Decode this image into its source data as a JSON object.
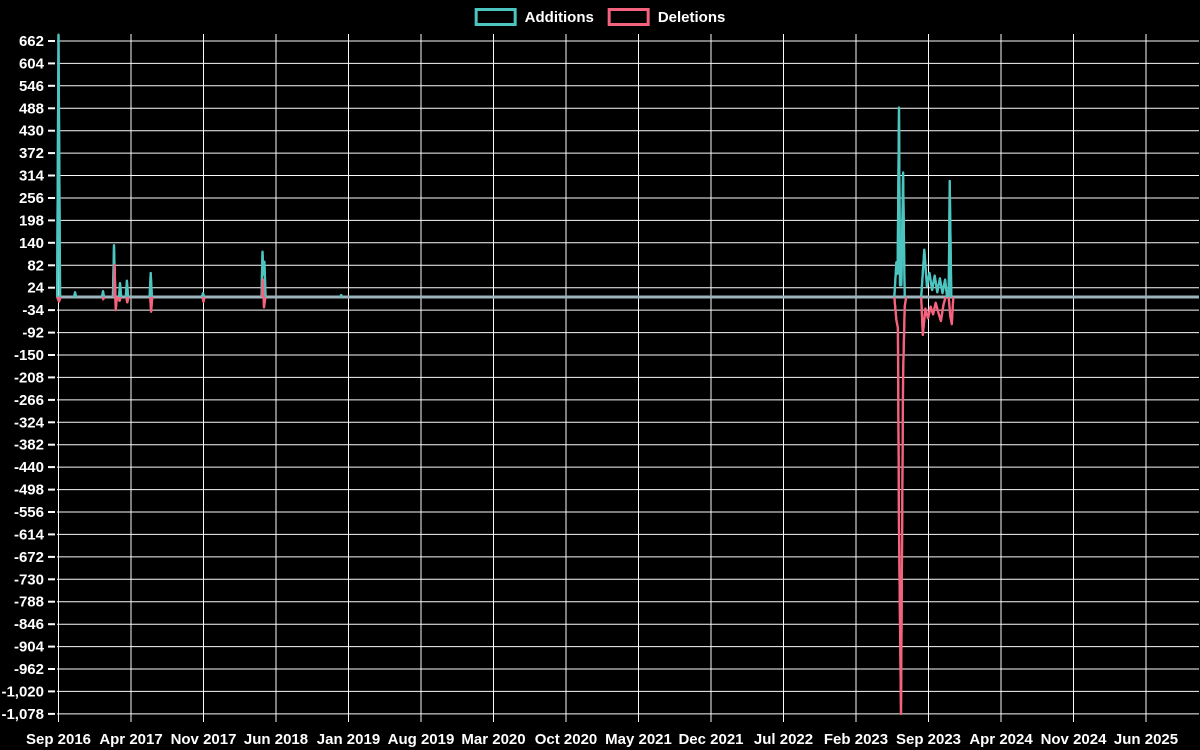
{
  "page": {
    "background": "#000000"
  },
  "legend": {
    "items": [
      {
        "label": "Additions",
        "color": "#4cc4c0"
      },
      {
        "label": "Deletions",
        "color": "#f4627d"
      }
    ]
  },
  "chart_data": {
    "type": "line",
    "title": "",
    "legend_position": "top-center",
    "grid": true,
    "colors": {
      "additions": "#4cc4c0",
      "deletions": "#f4627d",
      "baseline": "#9db4bc",
      "grid": "#fafafa",
      "text": "#ffffff",
      "background": "#000000"
    },
    "x_axis": {
      "unit": "months since Sep 2016",
      "tick_labels": [
        "Sep 2016",
        "Apr 2017",
        "Nov 2017",
        "Jun 2018",
        "Jan 2019",
        "Aug 2019",
        "Mar 2020",
        "Oct 2020",
        "May 2021",
        "Dec 2021",
        "Jul 2022",
        "Feb 2023",
        "Sep 2023",
        "Apr 2024",
        "Nov 2024",
        "Jun 2025"
      ],
      "tick_months": [
        0,
        7,
        14,
        21,
        28,
        35,
        42,
        49,
        56,
        63,
        70,
        77,
        84,
        91,
        98,
        105
      ],
      "range_months": [
        -0.14,
        110.1
      ]
    },
    "y_axis": {
      "tick_values": [
        662,
        604,
        546,
        488,
        430,
        372,
        314,
        256,
        198,
        140,
        82,
        24,
        -34,
        -92,
        -150,
        -208,
        -266,
        -324,
        -382,
        -440,
        -498,
        -556,
        -614,
        -672,
        -730,
        -788,
        -846,
        -904,
        -962,
        -1020,
        -1078
      ],
      "tick_labels": [
        "662",
        "604",
        "546",
        "488",
        "430",
        "372",
        "314",
        "256",
        "198",
        "140",
        "82",
        "24",
        "-34",
        "-92",
        "-150",
        "-208",
        "-266",
        "-324",
        "-382",
        "-440",
        "-498",
        "-556",
        "-614",
        "-672",
        "-730",
        "-788",
        "-846",
        "-904",
        "-962",
        "-1,020",
        "-1,078"
      ],
      "range": [
        -1099,
        680
      ]
    },
    "baseline_value": 0,
    "series": [
      {
        "name": "Additions",
        "color": "#4cc4c0",
        "points": [
          [
            -0.14,
            0
          ],
          [
            0,
            678
          ],
          [
            0.15,
            0
          ],
          [
            1.5,
            0
          ],
          [
            1.6,
            12
          ],
          [
            1.7,
            0
          ],
          [
            4.2,
            0
          ],
          [
            4.3,
            15
          ],
          [
            4.4,
            0
          ],
          [
            5.25,
            0
          ],
          [
            5.36,
            134
          ],
          [
            5.48,
            0
          ],
          [
            5.85,
            0
          ],
          [
            5.94,
            36
          ],
          [
            6.05,
            0
          ],
          [
            6.5,
            0
          ],
          [
            6.6,
            42
          ],
          [
            6.72,
            0
          ],
          [
            8.8,
            0
          ],
          [
            8.9,
            62
          ],
          [
            9.02,
            0
          ],
          [
            13.85,
            0
          ],
          [
            13.95,
            10
          ],
          [
            14.07,
            0
          ],
          [
            19.6,
            0
          ],
          [
            19.7,
            117
          ],
          [
            19.78,
            58
          ],
          [
            19.88,
            91
          ],
          [
            20.0,
            0
          ],
          [
            27.2,
            0
          ],
          [
            27.3,
            5
          ],
          [
            27.4,
            0
          ],
          [
            80.7,
            0
          ],
          [
            80.9,
            90
          ],
          [
            81.02,
            60
          ],
          [
            81.15,
            490
          ],
          [
            81.25,
            30
          ],
          [
            81.38,
            30
          ],
          [
            81.55,
            322
          ],
          [
            81.7,
            0
          ],
          [
            83.3,
            0
          ],
          [
            83.6,
            122
          ],
          [
            83.85,
            28
          ],
          [
            84.1,
            62
          ],
          [
            84.35,
            18
          ],
          [
            84.6,
            55
          ],
          [
            84.85,
            12
          ],
          [
            85.1,
            48
          ],
          [
            85.35,
            10
          ],
          [
            85.6,
            45
          ],
          [
            85.8,
            0
          ],
          [
            85.95,
            0
          ],
          [
            86.05,
            300
          ],
          [
            86.2,
            0
          ],
          [
            110.1,
            0
          ]
        ]
      },
      {
        "name": "Deletions",
        "color": "#f4627d",
        "points": [
          [
            -0.14,
            0
          ],
          [
            0.05,
            -12
          ],
          [
            0.2,
            0
          ],
          [
            4.25,
            0
          ],
          [
            4.32,
            -6
          ],
          [
            4.42,
            0
          ],
          [
            5.38,
            0
          ],
          [
            5.42,
            83
          ],
          [
            5.52,
            -34
          ],
          [
            5.64,
            0
          ],
          [
            5.9,
            -10
          ],
          [
            6.0,
            0
          ],
          [
            6.55,
            0
          ],
          [
            6.64,
            -14
          ],
          [
            6.76,
            0
          ],
          [
            8.85,
            0
          ],
          [
            8.94,
            -38
          ],
          [
            9.06,
            0
          ],
          [
            13.9,
            0
          ],
          [
            14.0,
            -12
          ],
          [
            14.1,
            0
          ],
          [
            19.65,
            0
          ],
          [
            19.74,
            45
          ],
          [
            19.84,
            -27
          ],
          [
            19.98,
            0
          ],
          [
            80.7,
            0
          ],
          [
            80.9,
            -60
          ],
          [
            81.05,
            -80
          ],
          [
            81.15,
            -600
          ],
          [
            81.35,
            -1078
          ],
          [
            81.55,
            -200
          ],
          [
            81.7,
            -25
          ],
          [
            81.85,
            0
          ],
          [
            83.3,
            0
          ],
          [
            83.45,
            -98
          ],
          [
            83.7,
            -30
          ],
          [
            83.95,
            -55
          ],
          [
            84.2,
            -25
          ],
          [
            84.45,
            -45
          ],
          [
            84.7,
            -15
          ],
          [
            84.95,
            -40
          ],
          [
            85.2,
            -62
          ],
          [
            85.45,
            -20
          ],
          [
            85.65,
            0
          ],
          [
            85.95,
            0
          ],
          [
            86.1,
            -48
          ],
          [
            86.25,
            -70
          ],
          [
            86.4,
            0
          ],
          [
            110.1,
            0
          ]
        ]
      }
    ]
  }
}
